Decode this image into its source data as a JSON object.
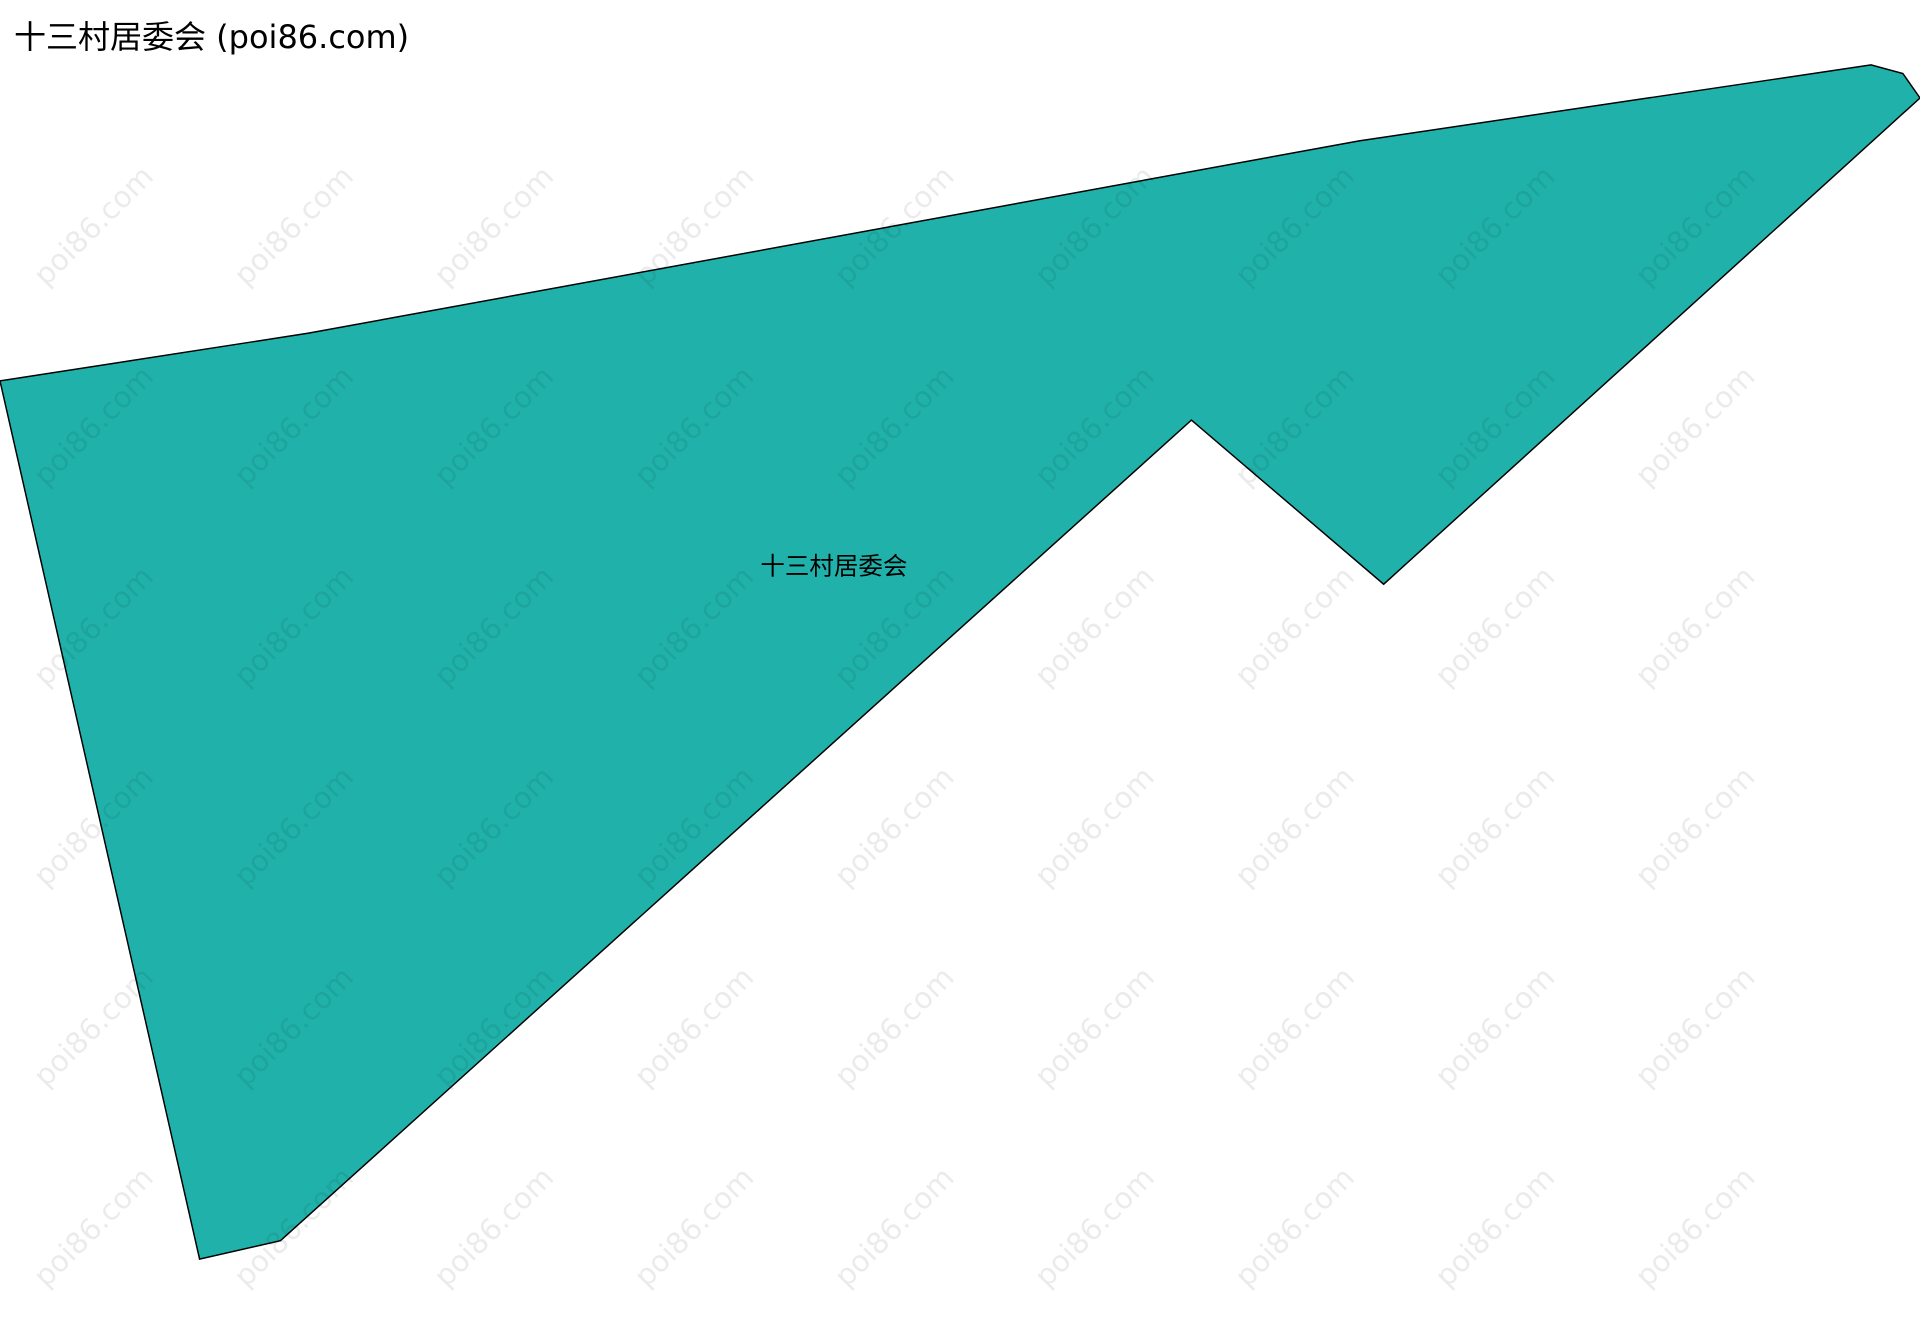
{
  "title": "十三村居委会 (poi86.com)",
  "watermark": "poi86.com",
  "region": {
    "name": "十三村居委会",
    "fill_color": "#20B2AA",
    "stroke_color": "#000000"
  },
  "background_color": "#ffffff"
}
